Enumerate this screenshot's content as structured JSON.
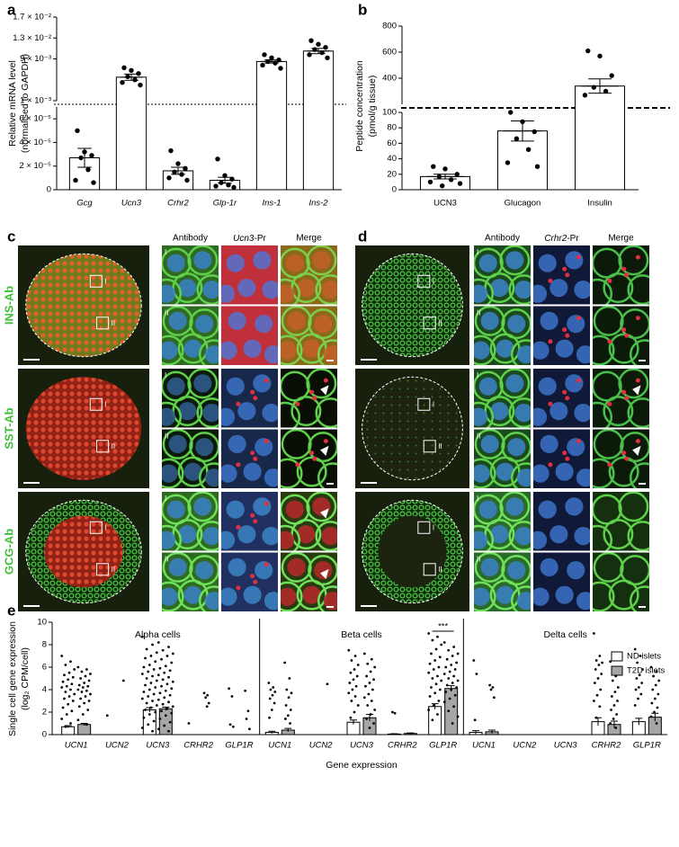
{
  "chart_data": [
    {
      "type": "broken-bar",
      "panel": "a",
      "ylabel": [
        "Relative mRNA level",
        "(normalised to GAPDH)"
      ],
      "categories": [
        "Gcg",
        "Ucn3",
        "Crhr2",
        "Glp-1r",
        "Ins-1",
        "Ins-2"
      ],
      "italic_categories": true,
      "values": [
        2.7e-05,
        0.0055,
        1.6e-05,
        8e-06,
        0.0085,
        0.0105
      ],
      "errors": [
        8e-06,
        0.0006,
        3e-06,
        2.5e-06,
        0.0003,
        0.0005
      ],
      "points": [
        [
          5e-05,
          3.2e-05,
          2.9e-05,
          2.7e-05,
          1.7e-05,
          8e-06,
          6e-06
        ],
        [
          0.0073,
          0.0068,
          0.0062,
          0.0056,
          0.005,
          0.0045,
          0.004
        ],
        [
          3.3e-05,
          2.2e-05,
          1.8e-05,
          1.5e-05,
          1.3e-05,
          1e-05,
          8e-06
        ],
        [
          2.6e-05,
          1.2e-05,
          9e-06,
          6e-06,
          4e-06,
          3e-06,
          2e-06
        ],
        [
          0.0098,
          0.0092,
          0.0088,
          0.0085,
          0.0082,
          0.0078,
          0.0072
        ],
        [
          0.0125,
          0.0118,
          0.0112,
          0.0108,
          0.0102,
          0.0098,
          0.0092
        ]
      ],
      "color": "#ffffff",
      "segments": [
        {
          "ylim": [
            0,
            7e-05
          ],
          "yticks": [
            0,
            {
              "value": 2e-05,
              "label": "2 × 10⁻⁵"
            },
            {
              "value": 4e-05,
              "label": "4 × 10⁻⁵"
            },
            {
              "value": 6e-05,
              "label": "6 × 10⁻⁵"
            }
          ]
        },
        {
          "ylim": [
            0.001,
            0.017
          ],
          "yticks": [
            {
              "value": 0.001,
              "label": "1 × 10⁻³"
            },
            {
              "value": 0.009,
              "label": "9 × 10⁻³"
            },
            {
              "value": 0.013,
              "label": "1.3 × 10⁻²"
            },
            {
              "value": 0.017,
              "label": "1.7 × 10⁻²"
            }
          ]
        }
      ]
    },
    {
      "type": "broken-bar",
      "panel": "b",
      "ylabel": [
        "Peptide concentration",
        "(pmol/g tissue)"
      ],
      "categories": [
        "UCN3",
        "Glucagon",
        "Insulin"
      ],
      "values": [
        17,
        76,
        340
      ],
      "errors": [
        3,
        13,
        55
      ],
      "points": [
        [
          30,
          27,
          20,
          17,
          13,
          10,
          8,
          5
        ],
        [
          100,
          88,
          75,
          66,
          52,
          35,
          30
        ],
        [
          610,
          570,
          420,
          330,
          300,
          270
        ]
      ],
      "color": "#ffffff",
      "segments": [
        {
          "ylim": [
            0,
            100
          ],
          "yticks": [
            0,
            20,
            40,
            60,
            80,
            100
          ]
        },
        {
          "ylim": [
            200,
            800
          ],
          "yticks": [
            400,
            600,
            800
          ]
        }
      ]
    },
    {
      "type": "grouped-bar",
      "panel": "e",
      "ylabel": [
        "Single cell gene expression",
        "(log₂ CPM/cell)"
      ],
      "xlabel": "Gene expression",
      "groups": [
        "Alpha cells",
        "Beta cells",
        "Delta cells"
      ],
      "categories": [
        "UCN1",
        "UCN2",
        "UCN3",
        "CRHR2",
        "GLP1R",
        "UCN1",
        "UCN2",
        "UCN3",
        "CRHR2",
        "GLP1R",
        "UCN1",
        "UCN2",
        "UCN3",
        "CRHR2",
        "GLP1R"
      ],
      "ylim": [
        0,
        10
      ],
      "yticks": [
        0,
        2,
        4,
        6,
        8,
        10
      ],
      "legend": "upper right",
      "annotations": [
        {
          "text": "***",
          "group": "Beta cells",
          "category": "GLP1R"
        }
      ],
      "series": [
        {
          "name": "ND islets",
          "color": "#ffffff",
          "values": [
            0.7,
            0,
            2.2,
            0,
            0,
            0.2,
            0,
            1.1,
            0.05,
            2.5,
            0.2,
            0,
            0,
            1.15,
            1.15
          ],
          "errors": [
            0.1,
            0,
            0.2,
            0,
            0,
            0.1,
            0,
            0.2,
            0.03,
            0.25,
            0.15,
            0,
            0,
            0.35,
            0.3
          ],
          "points": [
            [
              7.0,
              6.5,
              6.2,
              5.8,
              5.5,
              5.3,
              5.1,
              4.9,
              4.7,
              4.5,
              4.3,
              4.2,
              4.0,
              3.8,
              3.6,
              3.4,
              3.2,
              3.0,
              2.7,
              2.4,
              2.1,
              1.8,
              1.4,
              1.0,
              0.7
            ],
            [
              1.7
            ],
            [
              8.7,
              8.0,
              7.6,
              7.3,
              7.0,
              6.8,
              6.5,
              6.2,
              6.0,
              5.8,
              5.6,
              5.4,
              5.2,
              5.0,
              4.8,
              4.6,
              4.4,
              4.2,
              4.0,
              3.8,
              3.6,
              3.4,
              3.2,
              3.0,
              2.8,
              2.6,
              2.4,
              2.2,
              2.0,
              1.8,
              1.5,
              1.2,
              0.9,
              0.6,
              0.3
            ],
            [
              1.0
            ],
            [
              4.1,
              3.4,
              0.9,
              0.7
            ],
            [
              4.6,
              4.2,
              4.0,
              3.8,
              3.5,
              3.2,
              2.8,
              2.2,
              1.5
            ],
            [],
            [
              7.5,
              7.0,
              6.6,
              6.2,
              5.8,
              5.5,
              5.2,
              4.9,
              4.6,
              4.3,
              4.0,
              3.7,
              3.4,
              3.0,
              2.6,
              2.0,
              1.5
            ],
            [
              2.0,
              1.9
            ],
            [
              9.0,
              8.7,
              8.4,
              8.0,
              7.6,
              7.2,
              6.9,
              6.6,
              6.3,
              6.0,
              5.8,
              5.5,
              5.2,
              5.0,
              4.8,
              4.5,
              4.2,
              4.0,
              3.7,
              3.4,
              3.0,
              2.6,
              2.2,
              1.8,
              1.3
            ],
            [
              6.6,
              5.4,
              1.3
            ],
            [],
            [],
            [
              9.0,
              7.0,
              6.6,
              6.4,
              6.2,
              5.8,
              5.4,
              5.0,
              4.6,
              4.0,
              3.5,
              3.0,
              2.5,
              1.5
            ],
            [
              7.6,
              7.0,
              6.4,
              5.8,
              5.3,
              5.0,
              4.6,
              4.2,
              4.0,
              3.6,
              3.2,
              2.6
            ]
          ]
        },
        {
          "name": "T2D islets",
          "color": "#a6a6a6",
          "values": [
            0.9,
            0,
            2.3,
            0,
            0,
            0.4,
            0,
            1.5,
            0.1,
            4.1,
            0.25,
            0,
            0,
            0.9,
            1.55
          ],
          "errors": [
            0.1,
            0,
            0.15,
            0,
            0,
            0.15,
            0,
            0.3,
            0.05,
            0.25,
            0.15,
            0,
            0,
            0.3,
            0.35
          ],
          "points": [
            [
              6.0,
              5.8,
              5.6,
              5.4,
              5.2,
              5.0,
              4.8,
              4.6,
              4.4,
              4.3,
              4.2,
              4.0,
              3.9,
              3.8,
              3.6,
              3.4,
              3.2,
              3.0,
              2.8,
              2.5,
              2.2,
              1.8,
              1.3,
              0.9
            ],
            [
              4.8
            ],
            [
              8.2,
              7.8,
              7.5,
              7.2,
              7.0,
              6.7,
              6.4,
              6.1,
              5.9,
              5.7,
              5.5,
              5.3,
              5.1,
              4.9,
              4.7,
              4.5,
              4.3,
              4.1,
              3.9,
              3.7,
              3.5,
              3.3,
              3.1,
              2.9,
              2.7,
              2.5,
              2.3,
              2.1,
              1.9,
              1.7,
              1.4,
              1.1,
              0.8,
              0.5,
              0.3
            ],
            [
              3.7,
              3.5,
              3.3,
              2.8,
              2.5
            ],
            [
              3.9,
              2.1,
              1.4,
              0.5
            ],
            [
              6.4,
              5.0,
              4.0,
              3.7,
              3.3,
              2.6,
              2.2,
              1.7,
              1.4,
              1.0
            ],
            [
              4.5
            ],
            [
              7.2,
              6.7,
              6.3,
              6.0,
              5.6,
              5.2,
              4.9,
              4.6,
              4.3,
              4.0,
              3.6,
              3.3,
              3.0,
              2.6,
              2.2,
              1.8,
              1.4,
              1.0,
              0.6
            ],
            [],
            [
              8.2,
              7.8,
              7.5,
              7.2,
              7.0,
              6.7,
              6.4,
              6.2,
              6.0,
              5.8,
              5.6,
              5.4,
              5.2,
              5.0,
              4.8,
              4.6,
              4.4,
              4.2,
              4.0,
              3.8,
              3.5,
              3.2,
              2.9,
              2.5,
              2.1,
              1.6,
              1.0
            ],
            [
              4.4,
              4.2,
              4.0,
              3.3
            ],
            [],
            [],
            [
              6.5,
              5.2,
              4.8,
              4.2,
              3.8,
              3.4,
              3.0,
              2.6,
              2.2,
              1.8,
              1.4,
              1.0,
              0.6
            ],
            [
              6.0,
              5.6,
              5.2,
              4.8,
              4.4,
              4.0,
              3.6,
              3.2,
              2.8,
              2.4,
              2.0,
              1.6,
              1.0
            ]
          ]
        }
      ]
    }
  ],
  "image_panels": [
    {
      "panel": "c",
      "antibody": "Antibody",
      "reporter_gene": "Ucn3",
      "reporter_suffix": "-Pr",
      "merge": "Merge",
      "rows": [
        "INS-Ab",
        "SST-Ab",
        "GCG-Ab"
      ],
      "insets": [
        "I",
        "II"
      ]
    },
    {
      "panel": "d",
      "antibody": "Antibody",
      "reporter_gene": "Crhr2",
      "reporter_suffix": "-Pr",
      "merge": "Merge",
      "insets": [
        "I",
        "II"
      ]
    }
  ]
}
